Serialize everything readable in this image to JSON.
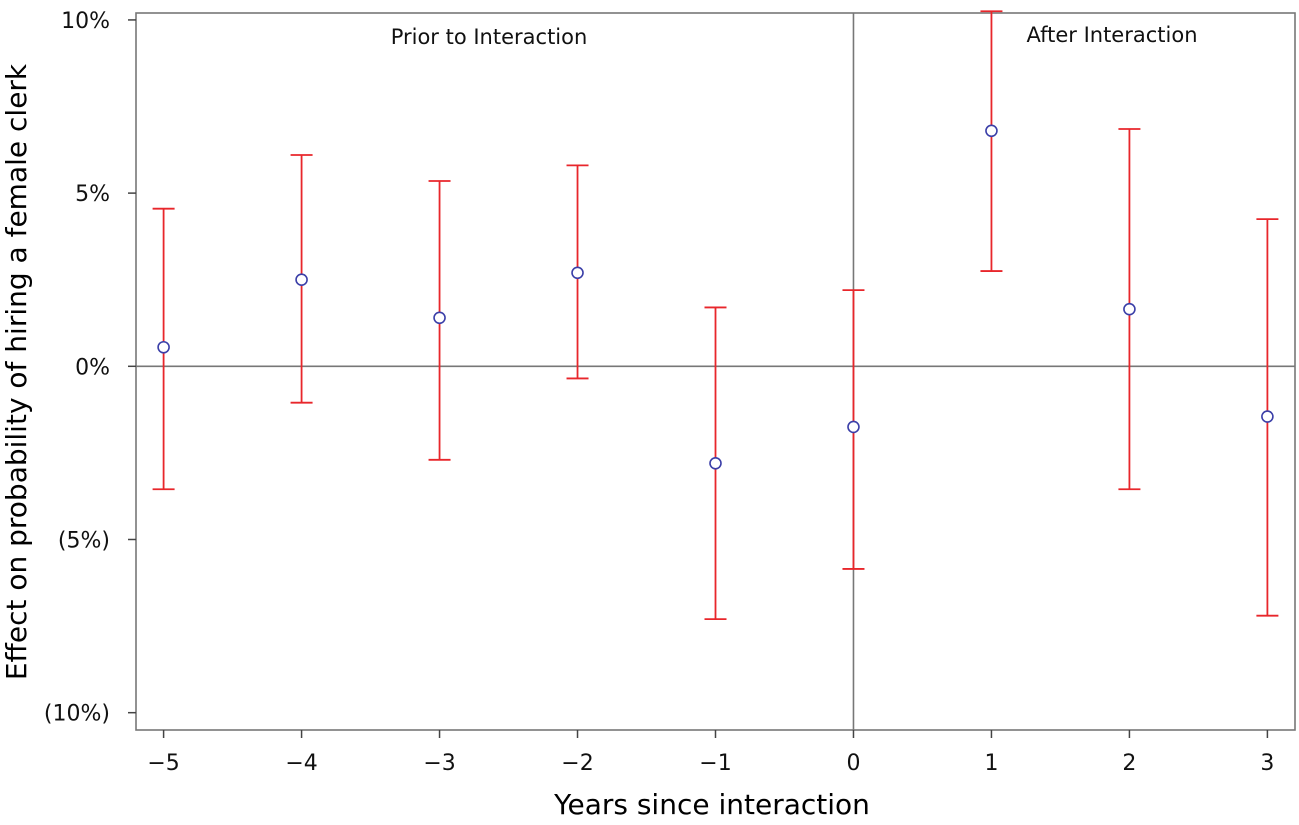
{
  "chart_data": {
    "type": "scatter",
    "title": "",
    "xlabel": "Years since interaction",
    "ylabel": "Effect on probability of hiring a female clerk",
    "x": [
      -5,
      -4,
      -3,
      -2,
      -1,
      0,
      1,
      2,
      3
    ],
    "x_tick_labels": [
      "−5",
      "−4",
      "−3",
      "−2",
      "−1",
      "0",
      "1",
      "2",
      "3"
    ],
    "xlim": [
      -5.2,
      3.2
    ],
    "y_ticks": [
      10,
      5,
      0,
      -5,
      -10
    ],
    "y_tick_labels": [
      "10%",
      "5%",
      "0%",
      "(5%)",
      "(10%)"
    ],
    "ylim": [
      -10.5,
      10.2
    ],
    "y_unit": "percent",
    "series": [
      {
        "estimate": [
          0.55,
          2.5,
          1.4,
          2.7,
          -2.8,
          -1.75,
          6.8,
          1.65,
          -1.45
        ],
        "ci_low": [
          -3.55,
          -1.05,
          -2.7,
          -0.35,
          -7.3,
          -5.85,
          2.75,
          -3.55,
          -7.2
        ],
        "ci_high": [
          4.55,
          6.1,
          5.35,
          5.8,
          1.7,
          2.2,
          10.25,
          6.85,
          4.25
        ]
      }
    ],
    "reference_lines": {
      "horizontal_at": 0,
      "vertical_at": 0
    },
    "annotations": [
      "Prior to Interaction",
      "After Interaction"
    ],
    "grid": false,
    "legend": "none",
    "colors": {
      "point": "#3b3fa8",
      "error_bar": "#e8262b",
      "reference_line": "#777777",
      "frame": "#777777"
    }
  }
}
